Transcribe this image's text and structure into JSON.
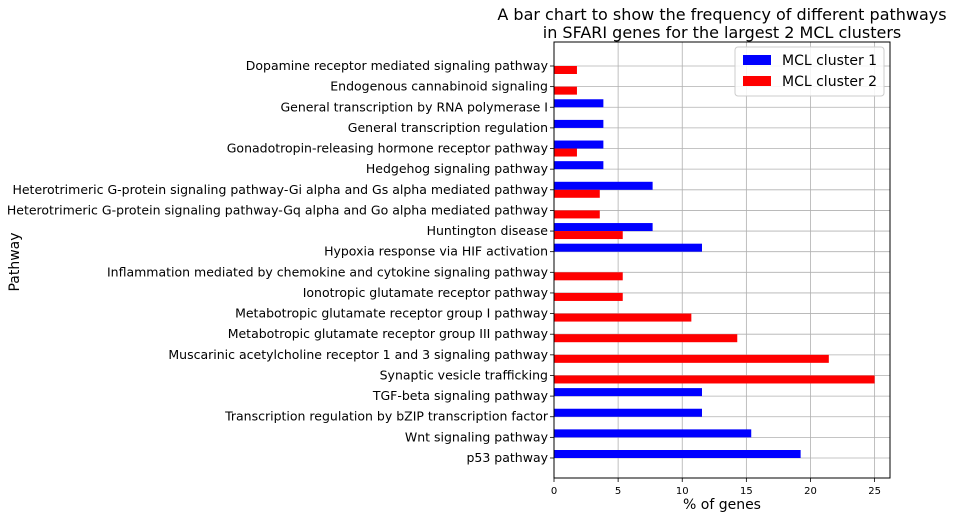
{
  "chart_data": {
    "type": "bar",
    "orientation": "horizontal",
    "title": "A bar chart to show the frequency of different pathways in SFARI genes for the largest 2 MCL clusters",
    "title_lines": [
      "A bar chart to show the frequency of different pathways",
      "in SFARI genes for the largest 2 MCL clusters"
    ],
    "xlabel": "% of genes",
    "ylabel": "Pathway",
    "xlim": [
      0,
      26.2
    ],
    "xticks": [
      0,
      5,
      10,
      15,
      20,
      25
    ],
    "grid": true,
    "legend_position": "top-right",
    "categories": [
      "Dopamine receptor mediated signaling pathway",
      "Endogenous cannabinoid signaling",
      "General transcription by RNA polymerase I",
      "General transcription regulation",
      "Gonadotropin-releasing hormone receptor pathway",
      "Hedgehog signaling pathway",
      "Heterotrimeric G-protein signaling pathway-Gi alpha and Gs alpha mediated pathway",
      "Heterotrimeric G-protein signaling pathway-Gq alpha and Go alpha mediated pathway",
      "Huntington disease",
      "Hypoxia response via HIF activation",
      "Inflammation mediated by chemokine and cytokine signaling pathway",
      "Ionotropic glutamate receptor pathway",
      "Metabotropic glutamate receptor group I pathway",
      "Metabotropic glutamate receptor group III pathway",
      "Muscarinic acetylcholine receptor 1 and 3 signaling pathway",
      "Synaptic vesicle trafficking",
      "TGF-beta signaling pathway",
      "Transcription regulation by bZIP transcription factor",
      "Wnt signaling pathway",
      "p53 pathway"
    ],
    "series": [
      {
        "name": "MCL cluster 1",
        "color": "#0000ff",
        "values": [
          0,
          0,
          3.85,
          3.85,
          3.85,
          3.85,
          7.69,
          0,
          7.69,
          11.54,
          0,
          0,
          0,
          0,
          0,
          0,
          11.54,
          11.54,
          15.38,
          19.23
        ]
      },
      {
        "name": "MCL cluster 2",
        "color": "#ff0000",
        "values": [
          1.79,
          1.79,
          0,
          0,
          1.79,
          0,
          3.57,
          3.57,
          5.36,
          0,
          5.36,
          5.36,
          10.71,
          14.29,
          21.43,
          25.0,
          0,
          0,
          0,
          0
        ]
      }
    ]
  }
}
